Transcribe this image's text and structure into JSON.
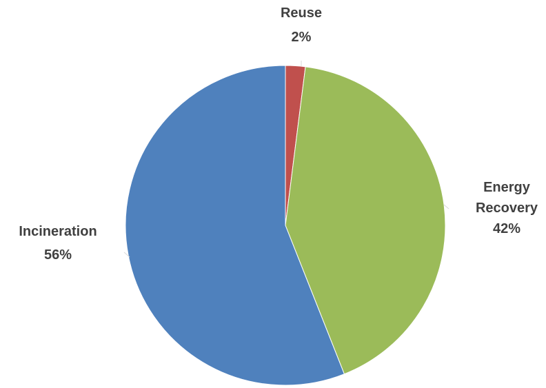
{
  "chart_data": {
    "type": "pie",
    "title": "",
    "start_angle_deg": 0,
    "direction": "clockwise",
    "legend": "none",
    "slices": [
      {
        "label": [
          "Reuse"
        ],
        "value": 2,
        "value_label": "2%",
        "color": "#c0504d"
      },
      {
        "label": [
          "Energy",
          "Recovery"
        ],
        "value": 42,
        "value_label": "42%",
        "color": "#9bbb59"
      },
      {
        "label": [
          "Incineration"
        ],
        "value": 56,
        "value_label": "56%",
        "color": "#4f81bd"
      }
    ]
  }
}
